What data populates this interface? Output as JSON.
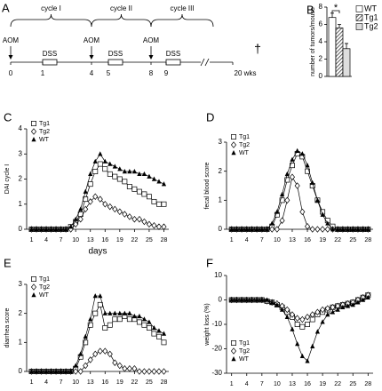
{
  "diagram": {
    "panel": "A",
    "cycles": [
      "cycle I",
      "cycle II",
      "cycle III"
    ],
    "aom": [
      "AOM",
      "AOM",
      "AOM"
    ],
    "dss": [
      "DSS",
      "DSS",
      "DSS"
    ],
    "weeks": [
      "0",
      "1",
      "4",
      "5",
      "8",
      "9",
      "20 wks"
    ],
    "end_mark": "†"
  },
  "chart_data": [
    {
      "panel": "B",
      "type": "bar",
      "ylabel": "number of tumors/mouse",
      "categories": [
        "WT",
        "Tg1",
        "Tg2"
      ],
      "values": [
        6.8,
        5.6,
        3.2
      ],
      "errors": [
        0.5,
        0.4,
        0.6
      ],
      "colors": [
        "#ffffff",
        "#555555",
        "#dddddd"
      ],
      "hatch": [
        false,
        true,
        false
      ],
      "ylim": [
        0,
        8
      ],
      "yticks": [
        0,
        2,
        4,
        6,
        8
      ],
      "significance": "*"
    },
    {
      "panel": "C",
      "type": "line",
      "ylabel": "DAI cycle I",
      "xlabel": "days",
      "legend": "upper left",
      "xlim": [
        0,
        29
      ],
      "ylim": [
        0,
        4
      ],
      "xticks": [
        1,
        4,
        7,
        10,
        13,
        16,
        19,
        22,
        25,
        28
      ],
      "yticks": [
        0,
        1,
        2,
        3,
        4
      ],
      "x": [
        1,
        2,
        3,
        4,
        5,
        6,
        7,
        8,
        9,
        10,
        11,
        12,
        13,
        14,
        15,
        16,
        17,
        18,
        19,
        20,
        21,
        22,
        23,
        24,
        25,
        26,
        27,
        28
      ],
      "series": [
        {
          "name": "Tg1",
          "marker": "square",
          "color": "#000000",
          "values": [
            0,
            0,
            0,
            0,
            0,
            0,
            0,
            0,
            0.1,
            0.3,
            0.6,
            1.2,
            1.8,
            2.3,
            2.6,
            2.4,
            2.2,
            2.1,
            2.0,
            1.9,
            1.7,
            1.6,
            1.5,
            1.4,
            1.3,
            1.1,
            1.0,
            1.0
          ]
        },
        {
          "name": "Tg2",
          "marker": "diamond",
          "color": "#000000",
          "values": [
            0,
            0,
            0,
            0,
            0,
            0,
            0,
            0,
            0,
            0.2,
            0.4,
            0.8,
            1.1,
            1.3,
            1.2,
            1.0,
            0.9,
            0.8,
            0.7,
            0.6,
            0.5,
            0.4,
            0.4,
            0.3,
            0.2,
            0.15,
            0.1,
            0.1
          ]
        },
        {
          "name": "WT",
          "marker": "triangle",
          "color": "#000000",
          "values": [
            0,
            0,
            0,
            0,
            0,
            0,
            0,
            0,
            0.1,
            0.4,
            0.8,
            1.5,
            2.2,
            2.7,
            3.0,
            2.7,
            2.6,
            2.5,
            2.4,
            2.3,
            2.3,
            2.3,
            2.2,
            2.2,
            2.1,
            2.0,
            1.9,
            1.8
          ]
        }
      ]
    },
    {
      "panel": "D",
      "type": "line",
      "ylabel": "fecal blood score",
      "legend": "upper left",
      "xlim": [
        0,
        29
      ],
      "ylim": [
        0,
        3
      ],
      "xticks": [
        1,
        4,
        7,
        10,
        13,
        16,
        19,
        22,
        25,
        28
      ],
      "yticks": [
        0,
        1,
        2,
        3
      ],
      "x": [
        1,
        2,
        3,
        4,
        5,
        6,
        7,
        8,
        9,
        10,
        11,
        12,
        13,
        14,
        15,
        16,
        17,
        18,
        19,
        20,
        21,
        22,
        23,
        24,
        25,
        26,
        27,
        28
      ],
      "series": [
        {
          "name": "Tg1",
          "marker": "square",
          "color": "#000000",
          "values": [
            0,
            0,
            0,
            0,
            0,
            0,
            0,
            0,
            0.1,
            0.5,
            1.0,
            1.7,
            2.2,
            2.6,
            2.5,
            2.0,
            1.5,
            1.0,
            0.6,
            0.3,
            0.1,
            0,
            0,
            0,
            0,
            0,
            0,
            0
          ]
        },
        {
          "name": "Tg2",
          "marker": "diamond",
          "color": "#000000",
          "values": [
            0,
            0,
            0,
            0,
            0,
            0,
            0,
            0,
            0,
            0,
            0.3,
            1.0,
            1.8,
            1.5,
            0.6,
            0.1,
            0,
            0,
            0,
            0,
            0,
            0,
            0,
            0,
            0,
            0,
            0,
            0
          ]
        },
        {
          "name": "WT",
          "marker": "triangle",
          "color": "#000000",
          "values": [
            0,
            0,
            0,
            0,
            0,
            0,
            0,
            0,
            0.2,
            0.6,
            1.2,
            1.9,
            2.4,
            2.7,
            2.6,
            2.2,
            1.6,
            1.0,
            0.5,
            0.2,
            0,
            0,
            0,
            0,
            0,
            0,
            0,
            0
          ]
        }
      ]
    },
    {
      "panel": "E",
      "type": "line",
      "ylabel": "diarrhea score",
      "legend": "upper left",
      "xlim": [
        0,
        29
      ],
      "ylim": [
        0,
        3
      ],
      "xticks": [
        1,
        4,
        7,
        10,
        13,
        16,
        19,
        22,
        25,
        28
      ],
      "yticks": [
        0,
        1,
        2,
        3
      ],
      "x": [
        1,
        2,
        3,
        4,
        5,
        6,
        7,
        8,
        9,
        10,
        11,
        12,
        13,
        14,
        15,
        16,
        17,
        18,
        19,
        20,
        21,
        22,
        23,
        24,
        25,
        26,
        27,
        28
      ],
      "series": [
        {
          "name": "Tg1",
          "marker": "square",
          "color": "#000000",
          "values": [
            0,
            0,
            0,
            0,
            0,
            0,
            0,
            0,
            0,
            0.1,
            0.5,
            1.0,
            1.6,
            2.0,
            2.3,
            1.5,
            1.6,
            1.8,
            1.8,
            1.9,
            1.8,
            1.8,
            1.7,
            1.6,
            1.5,
            1.3,
            1.2,
            1.0
          ]
        },
        {
          "name": "Tg2",
          "marker": "diamond",
          "color": "#000000",
          "values": [
            0,
            0,
            0,
            0,
            0,
            0,
            0,
            0,
            0,
            0,
            0,
            0.2,
            0.4,
            0.6,
            0.7,
            0.7,
            0.6,
            0.3,
            0.2,
            0.1,
            0.1,
            0.1,
            0,
            0,
            0,
            0,
            0,
            0
          ]
        },
        {
          "name": "WT",
          "marker": "triangle",
          "color": "#000000",
          "values": [
            0,
            0,
            0,
            0,
            0,
            0,
            0,
            0,
            0,
            0.2,
            0.6,
            1.2,
            1.8,
            2.6,
            2.6,
            2.0,
            2.0,
            2.0,
            2.0,
            2.0,
            2.0,
            1.9,
            1.9,
            1.8,
            1.7,
            1.5,
            1.4,
            1.3
          ]
        }
      ]
    },
    {
      "panel": "F",
      "type": "line",
      "ylabel": "weight loss (%)",
      "legend": "lower left",
      "xlim": [
        0,
        29
      ],
      "ylim": [
        -30,
        10
      ],
      "xticks": [
        1,
        4,
        7,
        10,
        13,
        16,
        19,
        22,
        25,
        28
      ],
      "yticks": [
        -30,
        -20,
        -10,
        0,
        10
      ],
      "x": [
        1,
        2,
        3,
        4,
        5,
        6,
        7,
        8,
        9,
        10,
        11,
        12,
        13,
        14,
        15,
        16,
        17,
        18,
        19,
        20,
        21,
        22,
        23,
        24,
        25,
        26,
        27,
        28
      ],
      "series": [
        {
          "name": "Tg1",
          "marker": "square",
          "color": "#000000",
          "values": [
            0,
            0,
            0,
            0,
            0,
            0,
            0,
            -0.5,
            -1,
            -2,
            -3,
            -5,
            -7,
            -10,
            -11,
            -10,
            -8,
            -6,
            -5,
            -4,
            -3,
            -2.5,
            -2,
            -1.5,
            -1,
            0,
            1,
            2
          ]
        },
        {
          "name": "Tg2",
          "marker": "diamond",
          "color": "#000000",
          "values": [
            0,
            0,
            0,
            0,
            0,
            0,
            0,
            -0.5,
            -1,
            -1.5,
            -2.5,
            -4,
            -6,
            -7.5,
            -8,
            -7,
            -6,
            -5,
            -4,
            -3.5,
            -3,
            -2.5,
            -2,
            -1.5,
            -1,
            0,
            1,
            2
          ]
        },
        {
          "name": "WT",
          "marker": "triangle",
          "color": "#000000",
          "values": [
            0,
            0,
            0,
            0,
            0,
            0,
            0,
            0,
            -1,
            -2,
            -4,
            -7,
            -12,
            -18,
            -23,
            -25,
            -19,
            -13,
            -9,
            -6,
            -5,
            -4,
            -3,
            -2.5,
            -2,
            -1,
            0,
            1
          ]
        }
      ]
    }
  ]
}
